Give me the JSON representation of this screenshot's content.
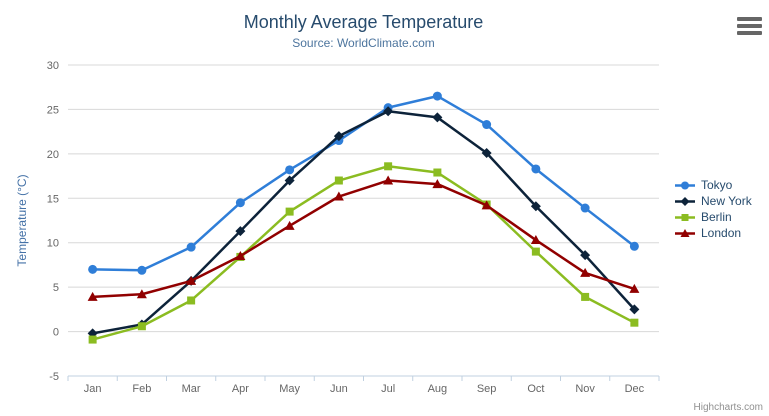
{
  "chart_data": {
    "type": "line",
    "title": "Monthly Average Temperature",
    "subtitle": "Source: WorldClimate.com",
    "xlabel": "",
    "ylabel": "Temperature (°C)",
    "categories": [
      "Jan",
      "Feb",
      "Mar",
      "Apr",
      "May",
      "Jun",
      "Jul",
      "Aug",
      "Sep",
      "Oct",
      "Nov",
      "Dec"
    ],
    "ylim": [
      -5,
      30
    ],
    "ytick_step": 5,
    "grid": true,
    "legend_position": "right",
    "series": [
      {
        "name": "Tokyo",
        "color": "#2f7ed8",
        "marker": "circle",
        "values": [
          7.0,
          6.9,
          9.5,
          14.5,
          18.2,
          21.5,
          25.2,
          26.5,
          23.3,
          18.3,
          13.9,
          9.6
        ]
      },
      {
        "name": "New York",
        "color": "#0d233a",
        "marker": "diamond",
        "values": [
          -0.2,
          0.8,
          5.7,
          11.3,
          17.0,
          22.0,
          24.8,
          24.1,
          20.1,
          14.1,
          8.6,
          2.5
        ]
      },
      {
        "name": "Berlin",
        "color": "#8bbc21",
        "marker": "square",
        "values": [
          -0.9,
          0.6,
          3.5,
          8.4,
          13.5,
          17.0,
          18.6,
          17.9,
          14.3,
          9.0,
          3.9,
          1.0
        ]
      },
      {
        "name": "London",
        "color": "#910000",
        "marker": "triangle",
        "values": [
          3.9,
          4.2,
          5.7,
          8.5,
          11.9,
          15.2,
          17.0,
          16.6,
          14.2,
          10.3,
          6.6,
          4.8
        ]
      }
    ]
  },
  "export_menu": {
    "icon": "hamburger-menu-icon"
  },
  "credits": {
    "label": "Highcharts.com"
  },
  "colors": {
    "title": "#274b6d",
    "subtitle": "#4d759e",
    "axis_label": "#666666",
    "yaxis_title": "#4572a7",
    "grid": "#d8d8d8",
    "axis_line": "#c0d0e0",
    "legend_text": "#274b6d",
    "credit": "#909090",
    "background": "#ffffff"
  }
}
